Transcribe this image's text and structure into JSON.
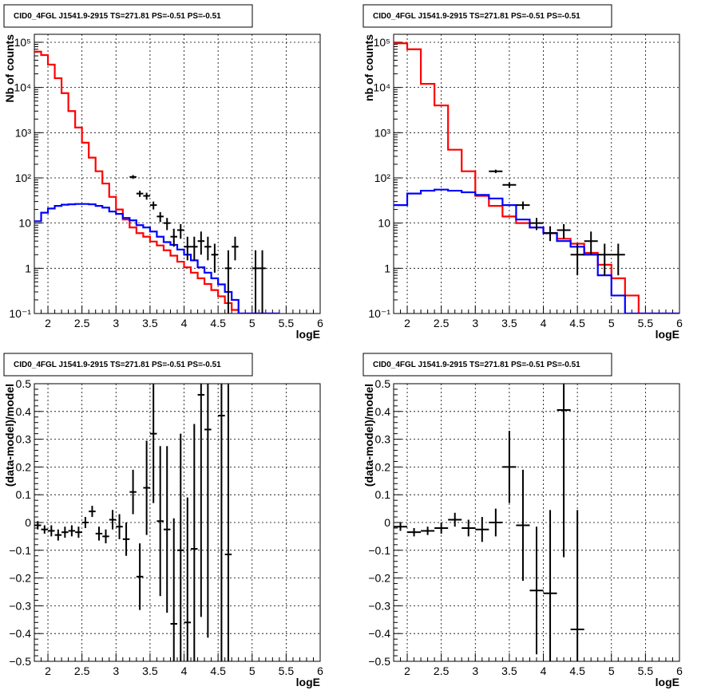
{
  "chart_data": [
    {
      "type": "histogram",
      "title": "CID0_4FGL J1541.9-2915 TS=271.81 PS=-0.51 PS=-0.51",
      "xlabel": "logE",
      "ylabel": "Nb of counts",
      "yscale": "log",
      "xlim": [
        1.8,
        6.0
      ],
      "ylim": [
        0.1,
        150000
      ],
      "grid": true,
      "x_tick_labels": [
        "2",
        "2.5",
        "3",
        "3.5",
        "4",
        "4.5",
        "5",
        "5.5",
        "6"
      ],
      "y_tick_labels": [
        "10⁻¹",
        "1",
        "10",
        "10²",
        "10³",
        "10⁴",
        "10⁵"
      ],
      "bin_width": 0.1,
      "bin_start": 1.8,
      "series": [
        {
          "role": "model_total",
          "color": "#ff0000",
          "values": [
            62000,
            52000,
            32000,
            16000,
            7500,
            3000,
            1300,
            600,
            280,
            140,
            75,
            38,
            20,
            12,
            8,
            6,
            5,
            3.9,
            3.2,
            2.5,
            1.9,
            1.4,
            1.05,
            0.8,
            0.6,
            0.45,
            0.33,
            0.24,
            0.17,
            0.12,
            0.1,
            0.1,
            0.1,
            0.1,
            0.1,
            0.1
          ]
        },
        {
          "role": "model_component",
          "color": "#0000ff",
          "values": [
            11,
            17,
            21,
            24,
            25.5,
            26,
            26.5,
            26.5,
            26,
            24,
            22,
            18,
            16,
            13,
            11.5,
            9,
            8,
            6.5,
            5,
            3.8,
            3.3,
            2.6,
            2,
            1.5,
            1.05,
            0.8,
            0.6,
            0.44,
            0.3,
            0.2,
            0.1,
            0.1,
            0.1,
            0.1,
            0.1,
            0.1
          ]
        },
        {
          "role": "data",
          "color": "#000000",
          "points": [
            {
              "x": 3.25,
              "y": 105,
              "lo": 95,
              "hi": 115
            },
            {
              "x": 3.35,
              "y": 45,
              "lo": 38,
              "hi": 52
            },
            {
              "x": 3.45,
              "y": 40,
              "lo": 33,
              "hi": 47
            },
            {
              "x": 3.55,
              "y": 25,
              "lo": 20,
              "hi": 30
            },
            {
              "x": 3.65,
              "y": 14,
              "lo": 10.5,
              "hi": 17.5
            },
            {
              "x": 3.75,
              "y": 10,
              "lo": 7,
              "hi": 13
            },
            {
              "x": 3.85,
              "y": 5,
              "lo": 3,
              "hi": 7.5
            },
            {
              "x": 3.95,
              "y": 7,
              "lo": 4.5,
              "hi": 9.5
            },
            {
              "x": 4.05,
              "y": 3,
              "lo": 1.5,
              "hi": 5
            },
            {
              "x": 4.15,
              "y": 3,
              "lo": 1.5,
              "hi": 5
            },
            {
              "x": 4.25,
              "y": 4,
              "lo": 2,
              "hi": 6.5
            },
            {
              "x": 4.35,
              "y": 3,
              "lo": 1.5,
              "hi": 5
            },
            {
              "x": 4.45,
              "y": 2,
              "lo": 0.8,
              "hi": 3.5
            },
            {
              "x": 4.65,
              "y": 1,
              "lo": 0.1,
              "hi": 2.5
            },
            {
              "x": 4.75,
              "y": 3,
              "lo": 1.5,
              "hi": 5
            },
            {
              "x": 5.05,
              "y": 1,
              "lo": 0.1,
              "hi": 2.5
            },
            {
              "x": 5.15,
              "y": 1,
              "lo": 0.1,
              "hi": 2.5
            }
          ]
        }
      ]
    },
    {
      "type": "histogram",
      "title": "CID0_4FGL J1541.9-2915 TS=271.81 PS=-0.51 PS=-0.51",
      "xlabel": "logE",
      "ylabel": "nb of counts",
      "yscale": "log",
      "xlim": [
        1.8,
        6.0
      ],
      "ylim": [
        0.1,
        150000
      ],
      "grid": true,
      "x_tick_labels": [
        "2",
        "2.5",
        "3",
        "3.5",
        "4",
        "4.5",
        "5",
        "5.5",
        "6"
      ],
      "y_tick_labels": [
        "10⁻¹",
        "1",
        "10",
        "10²",
        "10³",
        "10⁴",
        "10⁵"
      ],
      "bin_width": 0.2,
      "bin_start": 1.8,
      "series": [
        {
          "role": "model_total",
          "color": "#ff0000",
          "values": [
            95000,
            70000,
            12000,
            4000,
            420,
            140,
            40,
            24,
            14,
            10,
            8,
            6,
            4.5,
            3.5,
            2.2,
            1.2,
            0.6,
            0.25,
            0.1,
            0.1,
            0.1
          ]
        },
        {
          "role": "model_component",
          "color": "#0000ff",
          "values": [
            25,
            45,
            52,
            55,
            52,
            48,
            42,
            35,
            25,
            12,
            8,
            6,
            4,
            3,
            2,
            0.7,
            0.25,
            0.1,
            0.1,
            0.1,
            0.1
          ]
        },
        {
          "role": "data",
          "color": "#000000",
          "points": [
            {
              "x": 3.3,
              "y": 140,
              "lo": 128,
              "hi": 152
            },
            {
              "x": 3.5,
              "y": 70,
              "lo": 60,
              "hi": 80
            },
            {
              "x": 3.7,
              "y": 25,
              "lo": 20,
              "hi": 30
            },
            {
              "x": 3.9,
              "y": 10,
              "lo": 7,
              "hi": 13
            },
            {
              "x": 4.1,
              "y": 6,
              "lo": 4,
              "hi": 8.5
            },
            {
              "x": 4.3,
              "y": 7,
              "lo": 4.5,
              "hi": 9.5
            },
            {
              "x": 4.5,
              "y": 2,
              "lo": 0.7,
              "hi": 3.5
            },
            {
              "x": 4.7,
              "y": 4,
              "lo": 2,
              "hi": 6.5
            },
            {
              "x": 4.9,
              "y": 2,
              "lo": 0.7,
              "hi": 3.5
            },
            {
              "x": 5.1,
              "y": 2,
              "lo": 0.7,
              "hi": 3.5
            }
          ]
        }
      ]
    },
    {
      "type": "scatter",
      "title": "CID0_4FGL J1541.9-2915 TS=271.81 PS=-0.51 PS=-0.51",
      "xlabel": "logE",
      "ylabel": "(data-model)/model",
      "yscale": "linear",
      "xlim": [
        1.8,
        6.0
      ],
      "ylim": [
        -0.5,
        0.5
      ],
      "grid": true,
      "x_tick_labels": [
        "2",
        "2.5",
        "3",
        "3.5",
        "4",
        "4.5",
        "5",
        "5.5",
        "6"
      ],
      "y_tick_labels": [
        "−0.5",
        "−0.4",
        "−0.3",
        "−0.2",
        "−0.1",
        "0",
        "0.1",
        "0.2",
        "0.3",
        "0.4",
        "0.5"
      ],
      "points": [
        {
          "x": 1.85,
          "y": -0.01,
          "err": 0.015
        },
        {
          "x": 1.95,
          "y": -0.025,
          "err": 0.015
        },
        {
          "x": 2.05,
          "y": -0.03,
          "err": 0.02
        },
        {
          "x": 2.15,
          "y": -0.045,
          "err": 0.02
        },
        {
          "x": 2.25,
          "y": -0.035,
          "err": 0.02
        },
        {
          "x": 2.35,
          "y": -0.03,
          "err": 0.02
        },
        {
          "x": 2.45,
          "y": -0.035,
          "err": 0.02
        },
        {
          "x": 2.55,
          "y": 0.0,
          "err": 0.02
        },
        {
          "x": 2.65,
          "y": 0.04,
          "err": 0.02
        },
        {
          "x": 2.75,
          "y": -0.04,
          "err": 0.025
        },
        {
          "x": 2.85,
          "y": -0.05,
          "err": 0.025
        },
        {
          "x": 2.95,
          "y": 0.01,
          "err": 0.035
        },
        {
          "x": 3.05,
          "y": -0.015,
          "err": 0.045
        },
        {
          "x": 3.15,
          "y": -0.06,
          "err": 0.06
        },
        {
          "x": 3.25,
          "y": 0.11,
          "err": 0.08
        },
        {
          "x": 3.35,
          "y": -0.195,
          "err": 0.12
        },
        {
          "x": 3.45,
          "y": 0.125,
          "err": 0.17
        },
        {
          "x": 3.55,
          "y": 0.32,
          "err": 0.25
        },
        {
          "x": 3.65,
          "y": 0.005,
          "err": 0.27
        },
        {
          "x": 3.75,
          "y": -0.025,
          "err": 0.3
        },
        {
          "x": 3.85,
          "y": -0.365,
          "err": 0.38
        },
        {
          "x": 3.95,
          "y": -0.1,
          "err": 0.42
        },
        {
          "x": 4.05,
          "y": -0.36,
          "err": 0.45
        },
        {
          "x": 4.15,
          "y": -0.095,
          "err": 0.45
        },
        {
          "x": 4.25,
          "y": 0.46,
          "err": 0.8
        },
        {
          "x": 4.35,
          "y": 0.335,
          "err": 0.75
        },
        {
          "x": 4.55,
          "y": 0.385,
          "err": 0.95
        },
        {
          "x": 4.65,
          "y": -0.115,
          "err": 0.9
        }
      ]
    },
    {
      "type": "scatter",
      "title": "CID0_4FGL J1541.9-2915 TS=271.81 PS=-0.51 PS=-0.51",
      "xlabel": "logE",
      "ylabel": "(data-model)/model",
      "yscale": "linear",
      "xlim": [
        1.8,
        6.0
      ],
      "ylim": [
        -0.5,
        0.5
      ],
      "grid": true,
      "x_tick_labels": [
        "2",
        "2.5",
        "3",
        "3.5",
        "4",
        "4.5",
        "5",
        "5.5",
        "6"
      ],
      "y_tick_labels": [
        "−0.5",
        "−0.4",
        "−0.3",
        "−0.2",
        "−0.1",
        "0",
        "0.1",
        "0.2",
        "0.3",
        "0.4",
        "0.5"
      ],
      "points": [
        {
          "x": 1.9,
          "y": -0.015,
          "err": 0.015
        },
        {
          "x": 2.1,
          "y": -0.035,
          "err": 0.015
        },
        {
          "x": 2.3,
          "y": -0.03,
          "err": 0.015
        },
        {
          "x": 2.5,
          "y": -0.02,
          "err": 0.02
        },
        {
          "x": 2.7,
          "y": 0.01,
          "err": 0.025
        },
        {
          "x": 2.9,
          "y": -0.02,
          "err": 0.03
        },
        {
          "x": 3.1,
          "y": -0.025,
          "err": 0.045
        },
        {
          "x": 3.3,
          "y": 0.0,
          "err": 0.05
        },
        {
          "x": 3.5,
          "y": 0.2,
          "err": 0.13
        },
        {
          "x": 3.7,
          "y": -0.01,
          "err": 0.2
        },
        {
          "x": 3.9,
          "y": -0.245,
          "err": 0.23
        },
        {
          "x": 4.1,
          "y": -0.255,
          "err": 0.3
        },
        {
          "x": 4.3,
          "y": 0.405,
          "err": 0.53
        },
        {
          "x": 4.5,
          "y": -0.385,
          "err": 0.43
        }
      ]
    }
  ]
}
